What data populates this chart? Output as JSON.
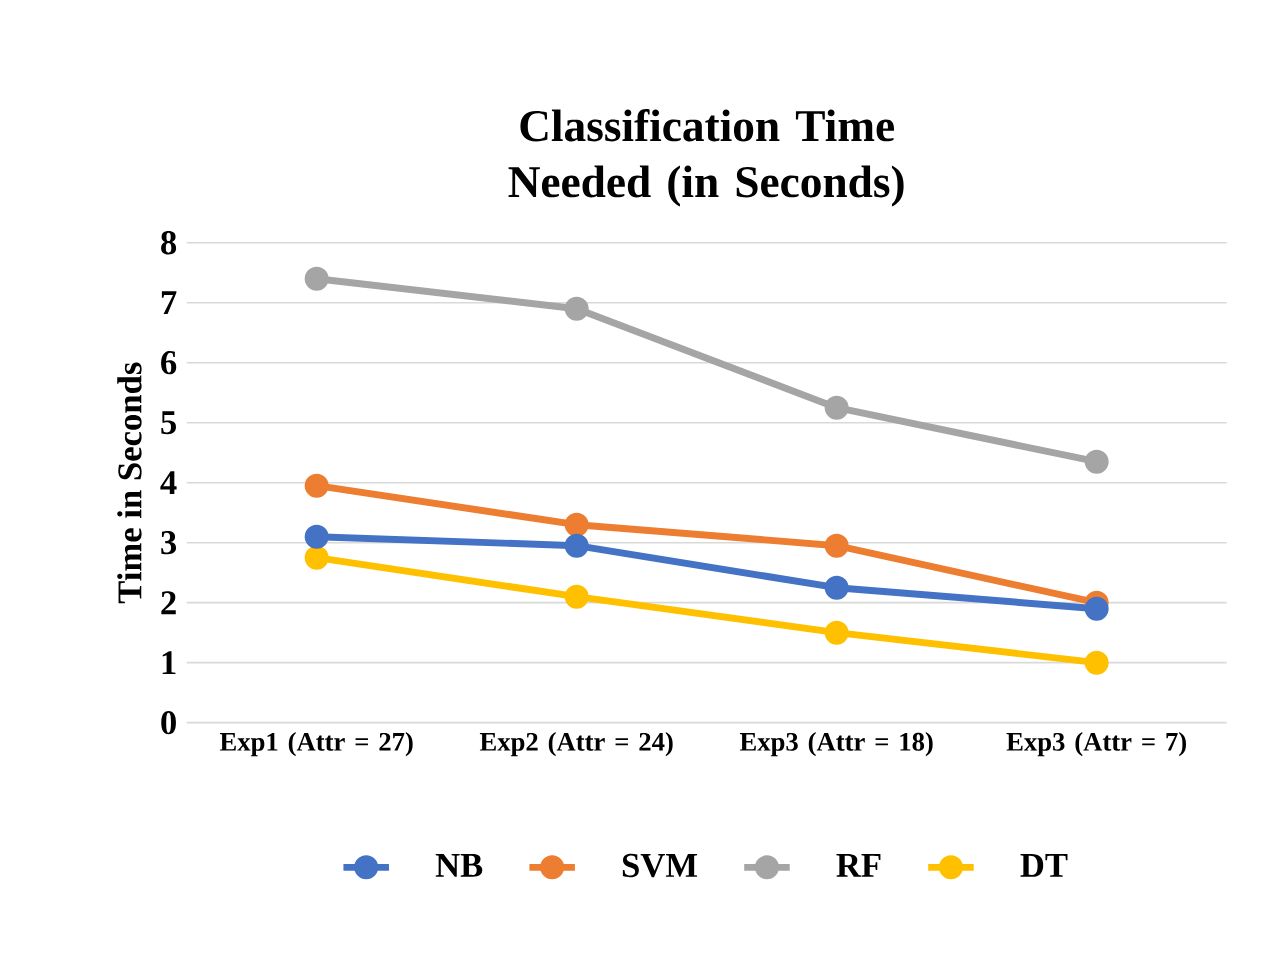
{
  "chart_data": {
    "type": "line",
    "title": "Classification Time Needed (in Seconds)",
    "ylabel": "Time in Seconds",
    "categories": [
      "Exp1 (Attr = 27)",
      "Exp2 (Attr = 24)",
      "Exp3 (Attr = 18)",
      "Exp3 (Attr = 7)"
    ],
    "series": [
      {
        "name": "NB",
        "color": "#4472c4",
        "values": [
          3.1,
          2.95,
          2.25,
          1.9
        ]
      },
      {
        "name": "SVM",
        "color": "#ed7d31",
        "values": [
          3.95,
          3.3,
          2.95,
          2.0
        ]
      },
      {
        "name": "RF",
        "color": "#a5a5a5",
        "values": [
          7.4,
          6.9,
          5.25,
          4.35
        ]
      },
      {
        "name": "DT",
        "color": "#ffc000",
        "values": [
          2.75,
          2.1,
          1.5,
          1.0
        ]
      }
    ],
    "ylim": [
      0,
      8
    ],
    "yticks": [
      0,
      1,
      2,
      3,
      4,
      5,
      6,
      7,
      8
    ],
    "grid": "y",
    "legend": "bottom",
    "marker": "circle",
    "line_style": "solid"
  }
}
